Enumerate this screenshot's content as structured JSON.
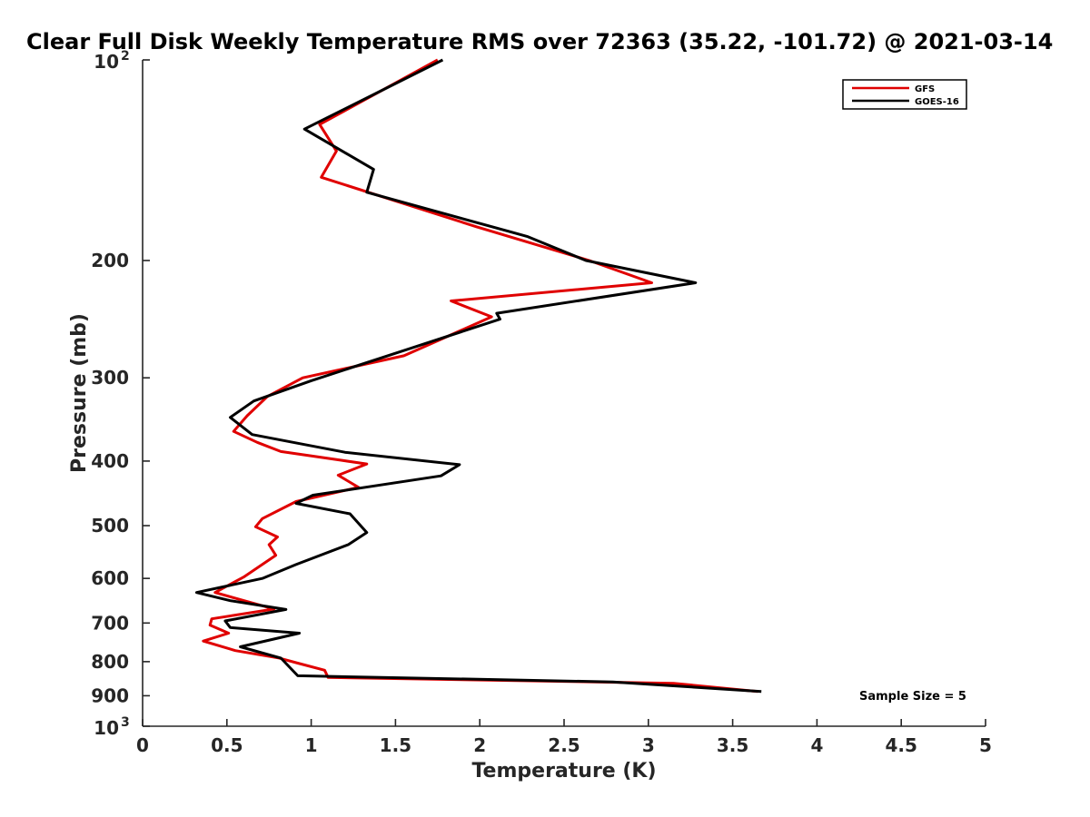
{
  "chart_data": {
    "type": "line",
    "title": "Clear Full Disk Weekly Temperature RMS over 72363 (35.22, -101.72) @ 2021-03-14",
    "xlabel": "Temperature (K)",
    "ylabel": "Pressure (mb)",
    "xlim": [
      0,
      5
    ],
    "ylim": [
      100,
      1000
    ],
    "y_scale": "log",
    "y_reversed": true,
    "x_ticks": [
      "0",
      "0.5",
      "1",
      "1.5",
      "2",
      "2.5",
      "3",
      "3.5",
      "4",
      "4.5",
      "5"
    ],
    "y_ticks": [
      {
        "value": 100,
        "label": "10",
        "exp": "2"
      },
      {
        "value": 200,
        "label": "200"
      },
      {
        "value": 300,
        "label": "300"
      },
      {
        "value": 400,
        "label": "400"
      },
      {
        "value": 500,
        "label": "500"
      },
      {
        "value": 600,
        "label": "600"
      },
      {
        "value": 700,
        "label": "700"
      },
      {
        "value": 800,
        "label": "800"
      },
      {
        "value": 900,
        "label": "900"
      },
      {
        "value": 1000,
        "label": "10",
        "exp": "3"
      }
    ],
    "legend_position": "top-right",
    "grid": false,
    "annotation": "Sample Size = 5",
    "series": [
      {
        "name": "GFS",
        "color": "#e00000",
        "points": [
          [
            1.75,
            100
          ],
          [
            1.05,
            125
          ],
          [
            1.15,
            137
          ],
          [
            1.06,
            150
          ],
          [
            1.98,
            178
          ],
          [
            2.65,
            200
          ],
          [
            3.02,
            216
          ],
          [
            1.83,
            230
          ],
          [
            2.07,
            243
          ],
          [
            1.55,
            278
          ],
          [
            0.95,
            300
          ],
          [
            0.74,
            320
          ],
          [
            0.62,
            342
          ],
          [
            0.54,
            361
          ],
          [
            0.68,
            375
          ],
          [
            0.82,
            387
          ],
          [
            1.33,
            404
          ],
          [
            1.16,
            420
          ],
          [
            1.28,
            438
          ],
          [
            0.91,
            460
          ],
          [
            0.71,
            488
          ],
          [
            0.67,
            502
          ],
          [
            0.8,
            520
          ],
          [
            0.75,
            534
          ],
          [
            0.79,
            554
          ],
          [
            0.6,
            597
          ],
          [
            0.43,
            630
          ],
          [
            0.78,
            667
          ],
          [
            0.41,
            690
          ],
          [
            0.4,
            705
          ],
          [
            0.51,
            725
          ],
          [
            0.36,
            745
          ],
          [
            0.55,
            770
          ],
          [
            0.81,
            790
          ],
          [
            0.92,
            804
          ],
          [
            1.08,
            824
          ],
          [
            1.1,
            845
          ],
          [
            3.15,
            862
          ],
          [
            3.65,
            887
          ]
        ]
      },
      {
        "name": "GOES-16",
        "color": "#000000",
        "points": [
          [
            1.78,
            100
          ],
          [
            0.96,
            127
          ],
          [
            1.37,
            146
          ],
          [
            1.33,
            158
          ],
          [
            2.28,
            184
          ],
          [
            2.63,
            200
          ],
          [
            3.28,
            216
          ],
          [
            2.1,
            240
          ],
          [
            2.12,
            245
          ],
          [
            1.0,
            303
          ],
          [
            0.66,
            325
          ],
          [
            0.52,
            344
          ],
          [
            0.65,
            365
          ],
          [
            1.2,
            388
          ],
          [
            1.88,
            405
          ],
          [
            1.77,
            421
          ],
          [
            1.01,
            450
          ],
          [
            0.91,
            463
          ],
          [
            1.23,
            480
          ],
          [
            1.33,
            512
          ],
          [
            1.22,
            534
          ],
          [
            0.91,
            572
          ],
          [
            0.71,
            600
          ],
          [
            0.32,
            630
          ],
          [
            0.52,
            648
          ],
          [
            0.85,
            668
          ],
          [
            0.49,
            695
          ],
          [
            0.52,
            711
          ],
          [
            0.93,
            725
          ],
          [
            0.58,
            760
          ],
          [
            0.82,
            790
          ],
          [
            0.92,
            840
          ],
          [
            2.79,
            858
          ],
          [
            3.67,
            887
          ]
        ]
      }
    ]
  }
}
